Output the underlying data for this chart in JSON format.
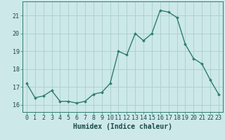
{
  "x": [
    0,
    1,
    2,
    3,
    4,
    5,
    6,
    7,
    8,
    9,
    10,
    11,
    12,
    13,
    14,
    15,
    16,
    17,
    18,
    19,
    20,
    21,
    22,
    23
  ],
  "y": [
    17.2,
    16.4,
    16.5,
    16.8,
    16.2,
    16.2,
    16.1,
    16.2,
    16.6,
    16.7,
    17.2,
    19.0,
    18.8,
    20.0,
    19.6,
    20.0,
    21.3,
    21.2,
    20.9,
    19.4,
    18.6,
    18.3,
    17.4,
    16.6
  ],
  "line_color": "#2e7d6e",
  "marker": "D",
  "marker_size": 2.0,
  "line_width": 1.0,
  "bg_color": "#cce8e8",
  "grid_color": "#aacece",
  "xlabel": "Humidex (Indice chaleur)",
  "xlabel_fontsize": 7,
  "tick_fontsize": 6,
  "ylim": [
    15.6,
    21.8
  ],
  "xlim": [
    -0.5,
    23.5
  ],
  "yticks": [
    16,
    17,
    18,
    19,
    20,
    21
  ],
  "xticks": [
    0,
    1,
    2,
    3,
    4,
    5,
    6,
    7,
    8,
    9,
    10,
    11,
    12,
    13,
    14,
    15,
    16,
    17,
    18,
    19,
    20,
    21,
    22,
    23
  ]
}
